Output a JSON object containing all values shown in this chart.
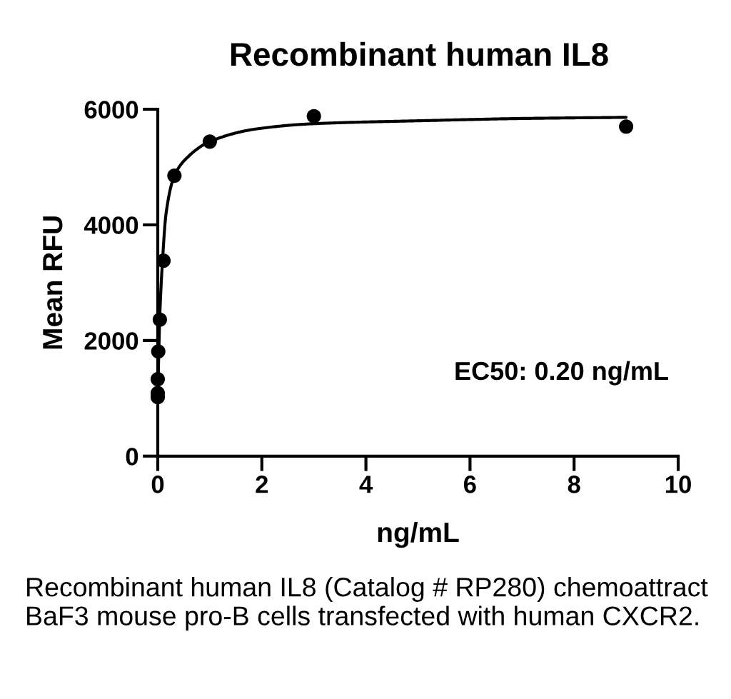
{
  "chart_data": {
    "type": "scatter",
    "title": "Recombinant human IL8",
    "xlabel": "ng/mL",
    "ylabel": "Mean RFU",
    "annotations": [
      "EC50: 0.20 ng/mL",
      "Recombinant human IL8 (Catalog # RP280) chemoattract BaF3 mouse pro-B cells transfected with human CXCR2."
    ],
    "series": [
      {
        "type": "line",
        "color": "#000000",
        "marker": "none",
        "line_style": "solid",
        "x": [
          0,
          0.02,
          0.04,
          0.09,
          0.16,
          0.32,
          0.55,
          1,
          1.9,
          3,
          5,
          7,
          9
        ],
        "values": [
          1000,
          1800,
          2450,
          3360,
          4200,
          4850,
          5150,
          5440,
          5660,
          5750,
          5800,
          5840,
          5860
        ]
      },
      {
        "color": "#000000",
        "marker": "circle",
        "x": [
          0,
          0,
          0,
          0.01,
          0.04,
          0.11,
          0.32,
          1,
          3,
          9
        ],
        "values": [
          1020,
          1090,
          1330,
          1810,
          2360,
          3380,
          4850,
          5440,
          5880,
          5700
        ]
      }
    ],
    "xlim": [
      0,
      10
    ],
    "xticks": [
      0,
      2,
      4,
      6,
      8,
      10
    ],
    "ylim": [
      0,
      6000
    ],
    "yticks": [
      0,
      2000,
      4000,
      6000
    ]
  }
}
